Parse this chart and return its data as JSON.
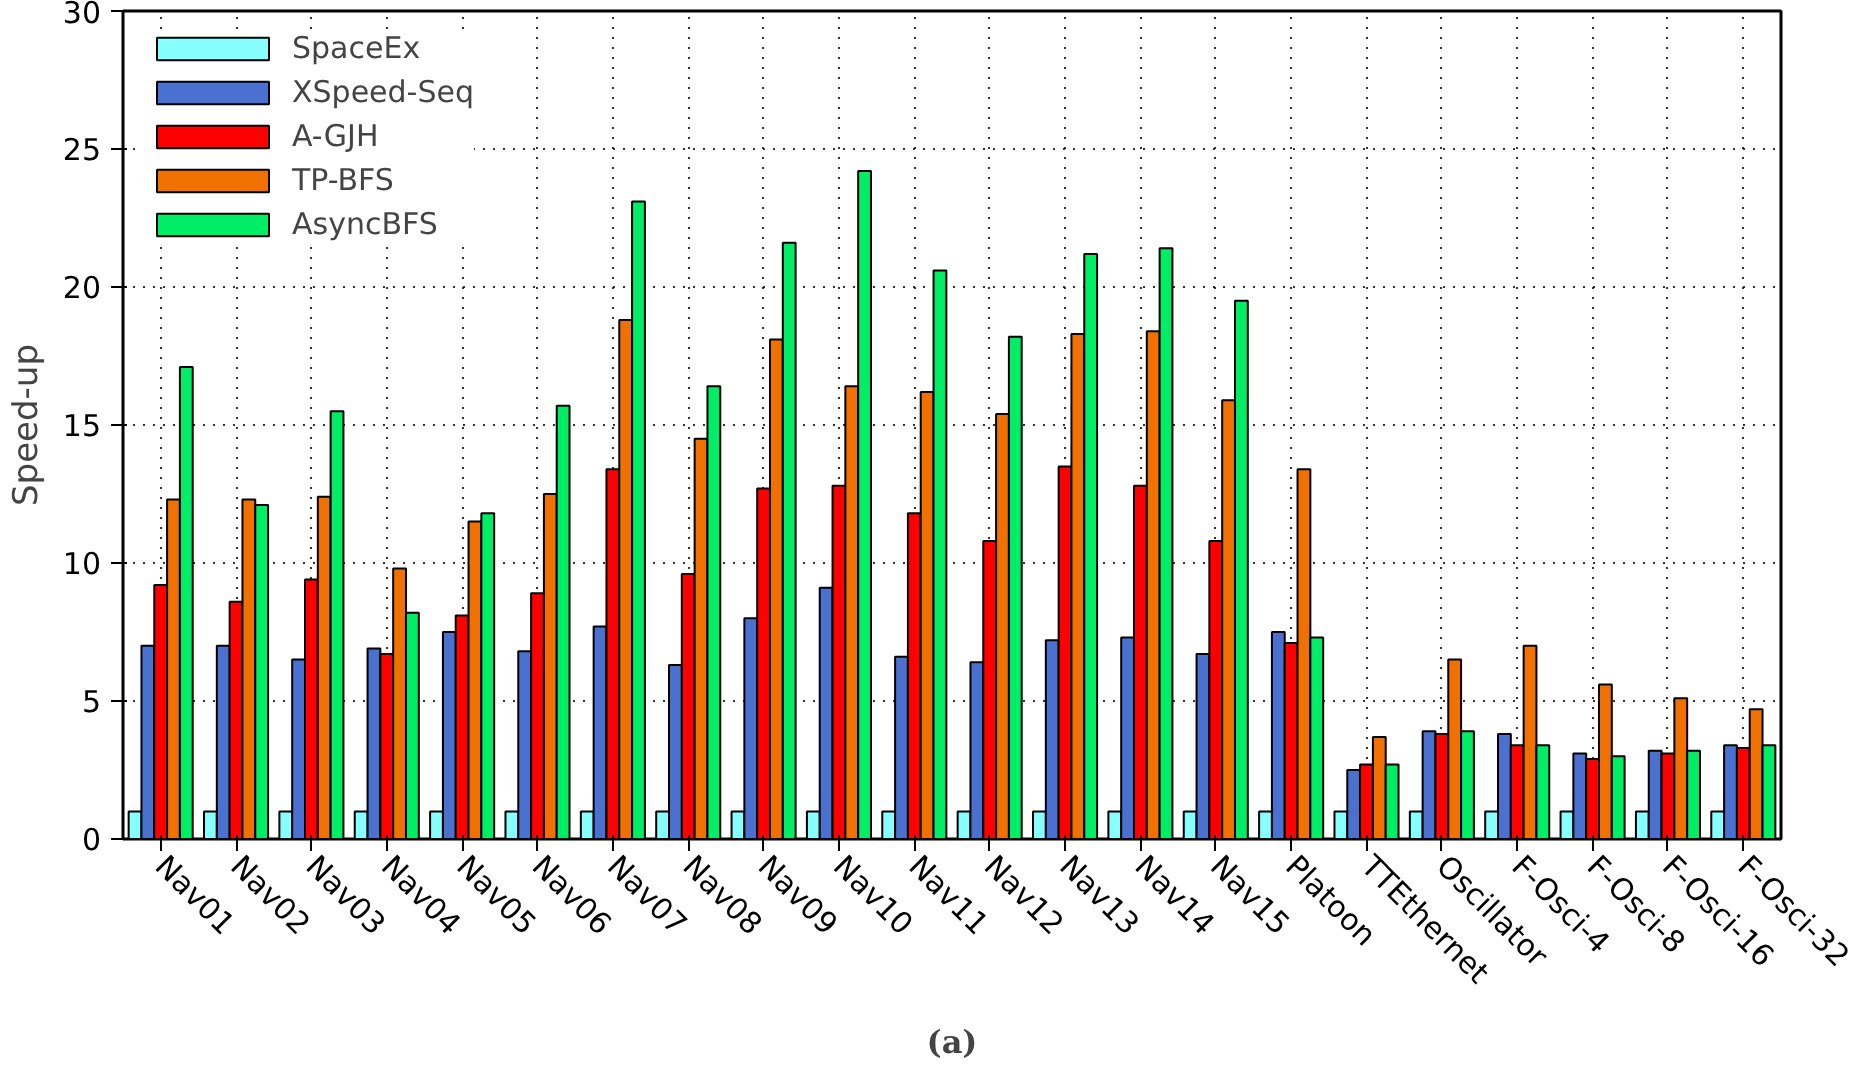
{
  "chart_data": {
    "type": "bar",
    "ylabel": "Speed-up",
    "annotations": [
      "(a)"
    ],
    "categories": [
      "Nav01",
      "Nav02",
      "Nav03",
      "Nav04",
      "Nav05",
      "Nav06",
      "Nav07",
      "Nav08",
      "Nav09",
      "Nav10",
      "Nav11",
      "Nav12",
      "Nav13",
      "Nav14",
      "Nav15",
      "Platoon",
      "TTEthernet",
      "Oscillator",
      "F-Osci-4",
      "F-Osci-8",
      "F-Osci-16",
      "F-Osci-32"
    ],
    "series": [
      {
        "name": "SpaceEx",
        "color": "#88ffff",
        "values": [
          1,
          1,
          1,
          1,
          1,
          1,
          1,
          1,
          1,
          1,
          1,
          1,
          1,
          1,
          1,
          1,
          1,
          1,
          1,
          1,
          1,
          1
        ]
      },
      {
        "name": "XSpeed-Seq",
        "color": "#4a70d0",
        "values": [
          7.0,
          7.0,
          6.5,
          6.9,
          7.5,
          6.8,
          7.7,
          6.3,
          8.0,
          9.1,
          6.6,
          6.4,
          7.2,
          7.3,
          6.7,
          7.5,
          2.5,
          3.9,
          3.8,
          3.1,
          3.2,
          3.4
        ]
      },
      {
        "name": "A-GJH",
        "color": "#ff0000",
        "values": [
          9.2,
          8.6,
          9.4,
          6.7,
          8.1,
          8.9,
          13.4,
          9.6,
          12.7,
          12.8,
          11.8,
          10.8,
          13.5,
          12.8,
          10.8,
          7.1,
          2.7,
          3.8,
          3.4,
          2.9,
          3.1,
          3.3
        ]
      },
      {
        "name": "TP-BFS",
        "color": "#f07000",
        "values": [
          12.3,
          12.3,
          12.4,
          9.8,
          11.5,
          12.5,
          18.8,
          14.5,
          18.1,
          16.4,
          16.2,
          15.4,
          18.3,
          18.4,
          15.9,
          13.4,
          3.7,
          6.5,
          7.0,
          5.6,
          5.1,
          4.7
        ]
      },
      {
        "name": "AsyncBFS",
        "color": "#00ee66",
        "values": [
          17.1,
          12.1,
          15.5,
          8.2,
          11.8,
          15.7,
          23.1,
          16.4,
          21.6,
          24.2,
          20.6,
          18.2,
          21.2,
          21.4,
          19.5,
          7.3,
          2.7,
          3.9,
          3.4,
          3.0,
          3.2,
          3.4
        ]
      }
    ],
    "ylim": [
      0,
      30
    ],
    "yticks": [
      0,
      5,
      10,
      15,
      20,
      25,
      30
    ],
    "grid": true,
    "legend": "top left"
  }
}
